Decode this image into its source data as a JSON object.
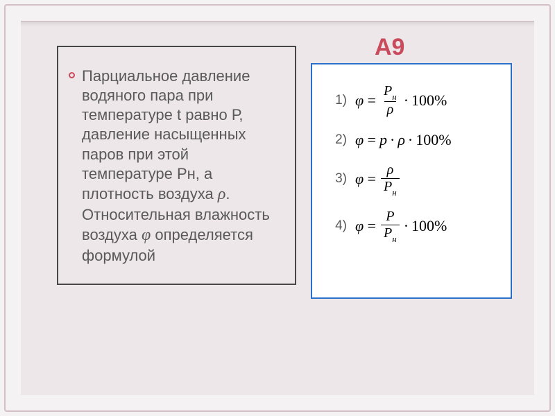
{
  "title": "А9",
  "question": {
    "line1": "Парциальное давление водяного пара  при температуре t равно Р, давление насыщенных паров при этой температуре Рн, а плотность воздуха",
    "rho_symbol": "ρ",
    "line2": "Относительная влажность воздуха",
    "phi_symbol": "φ",
    "line3": "определяется формулой"
  },
  "answers": {
    "labels": [
      "1)",
      "2)",
      "3)",
      "4)"
    ],
    "phi": "φ",
    "eq": "=",
    "dot": "·",
    "percent": "100%",
    "P": "P",
    "Pn_top": "P",
    "Pn_sub": "н",
    "p_small": "p",
    "rho": "ρ"
  },
  "colors": {
    "title": "#c84a5c",
    "question_border": "#474747",
    "answers_border": "#2a6fc9",
    "text": "#595959",
    "slide_bg": "#eee7e9",
    "page_bg": "#f5f2f3"
  }
}
